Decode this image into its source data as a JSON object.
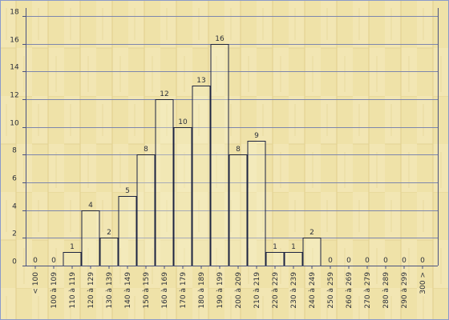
{
  "chart_data": {
    "type": "bar",
    "categories": [
      "< 100",
      "100 à 109",
      "110 à 119",
      "120 à 129",
      "130 à 139",
      "140 à 149",
      "150 à 159",
      "160 à 169",
      "170 à 179",
      "180 à 189",
      "190 à 199",
      "200 à 209",
      "210 à 219",
      "220 à 229",
      "230 à 239",
      "240 à 249",
      "250 à 259",
      "260 à 269",
      "270 à 279",
      "280 à 289",
      "290 à 299",
      "300 >"
    ],
    "values": [
      0,
      0,
      1,
      4,
      2,
      5,
      8,
      12,
      10,
      13,
      16,
      8,
      9,
      1,
      1,
      2,
      0,
      0,
      0,
      0,
      0,
      0
    ],
    "data_labels": [
      "0",
      "0",
      "1",
      "4",
      "2",
      "5",
      "8",
      "12",
      "10",
      "13",
      "16",
      "8",
      "9",
      "1",
      "1",
      "2",
      "0",
      "0",
      "0",
      "0",
      "0",
      "0"
    ],
    "y_ticks": [
      "0",
      "2",
      "4",
      "6",
      "8",
      "10",
      "12",
      "14",
      "16",
      "18"
    ],
    "ylim": [
      0,
      18
    ],
    "grid": true,
    "legend": "none",
    "colors": {
      "background": "#efe2a8",
      "bar_fill": "#f7f0cc",
      "bar_stroke": "#1c2340",
      "grid": "#7d86ad",
      "axis": "#4a5280",
      "text": "#2b2f3a",
      "frame": "#8a9acb"
    }
  }
}
